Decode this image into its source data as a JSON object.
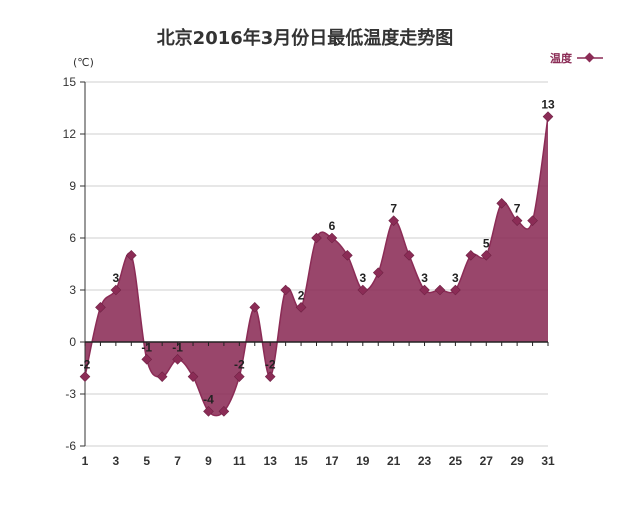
{
  "chart_data": {
    "type": "area",
    "title": "北京2016年3月份日最低温度走势图",
    "ylabel": "(℃)",
    "xlabel": "",
    "ylim": [
      -6,
      15
    ],
    "yticks": [
      15,
      12,
      9,
      6,
      3,
      0,
      -3,
      -6
    ],
    "xticks": [
      1,
      3,
      5,
      7,
      9,
      11,
      13,
      15,
      17,
      19,
      21,
      23,
      25,
      27,
      29,
      31
    ],
    "legend_position": "top-right",
    "grid": true,
    "smooth": true,
    "series": [
      {
        "name": "温度",
        "color": "#8b2c56",
        "x": [
          1,
          2,
          3,
          4,
          5,
          6,
          7,
          8,
          9,
          10,
          11,
          12,
          13,
          14,
          15,
          16,
          17,
          18,
          19,
          20,
          21,
          22,
          23,
          24,
          25,
          26,
          27,
          28,
          29,
          30,
          31
        ],
        "values": [
          -2,
          2,
          3,
          5,
          -1,
          -2,
          -1,
          -2,
          -4,
          -4,
          -2,
          2,
          -2,
          3,
          2,
          6,
          6,
          5,
          3,
          4,
          7,
          5,
          3,
          3,
          3,
          5,
          5,
          8,
          7,
          7,
          13
        ]
      }
    ],
    "data_labels": [
      {
        "x": 1,
        "text": "-2"
      },
      {
        "x": 3,
        "text": "3"
      },
      {
        "x": 5,
        "text": "-1"
      },
      {
        "x": 7,
        "text": "-1"
      },
      {
        "x": 9,
        "text": "-4"
      },
      {
        "x": 11,
        "text": "-2"
      },
      {
        "x": 13,
        "text": "-2"
      },
      {
        "x": 15,
        "text": "2"
      },
      {
        "x": 17,
        "text": "6"
      },
      {
        "x": 19,
        "text": "3"
      },
      {
        "x": 21,
        "text": "7"
      },
      {
        "x": 23,
        "text": "3"
      },
      {
        "x": 25,
        "text": "3"
      },
      {
        "x": 27,
        "text": "5"
      },
      {
        "x": 29,
        "text": "7"
      },
      {
        "x": 31,
        "text": "13"
      }
    ]
  }
}
